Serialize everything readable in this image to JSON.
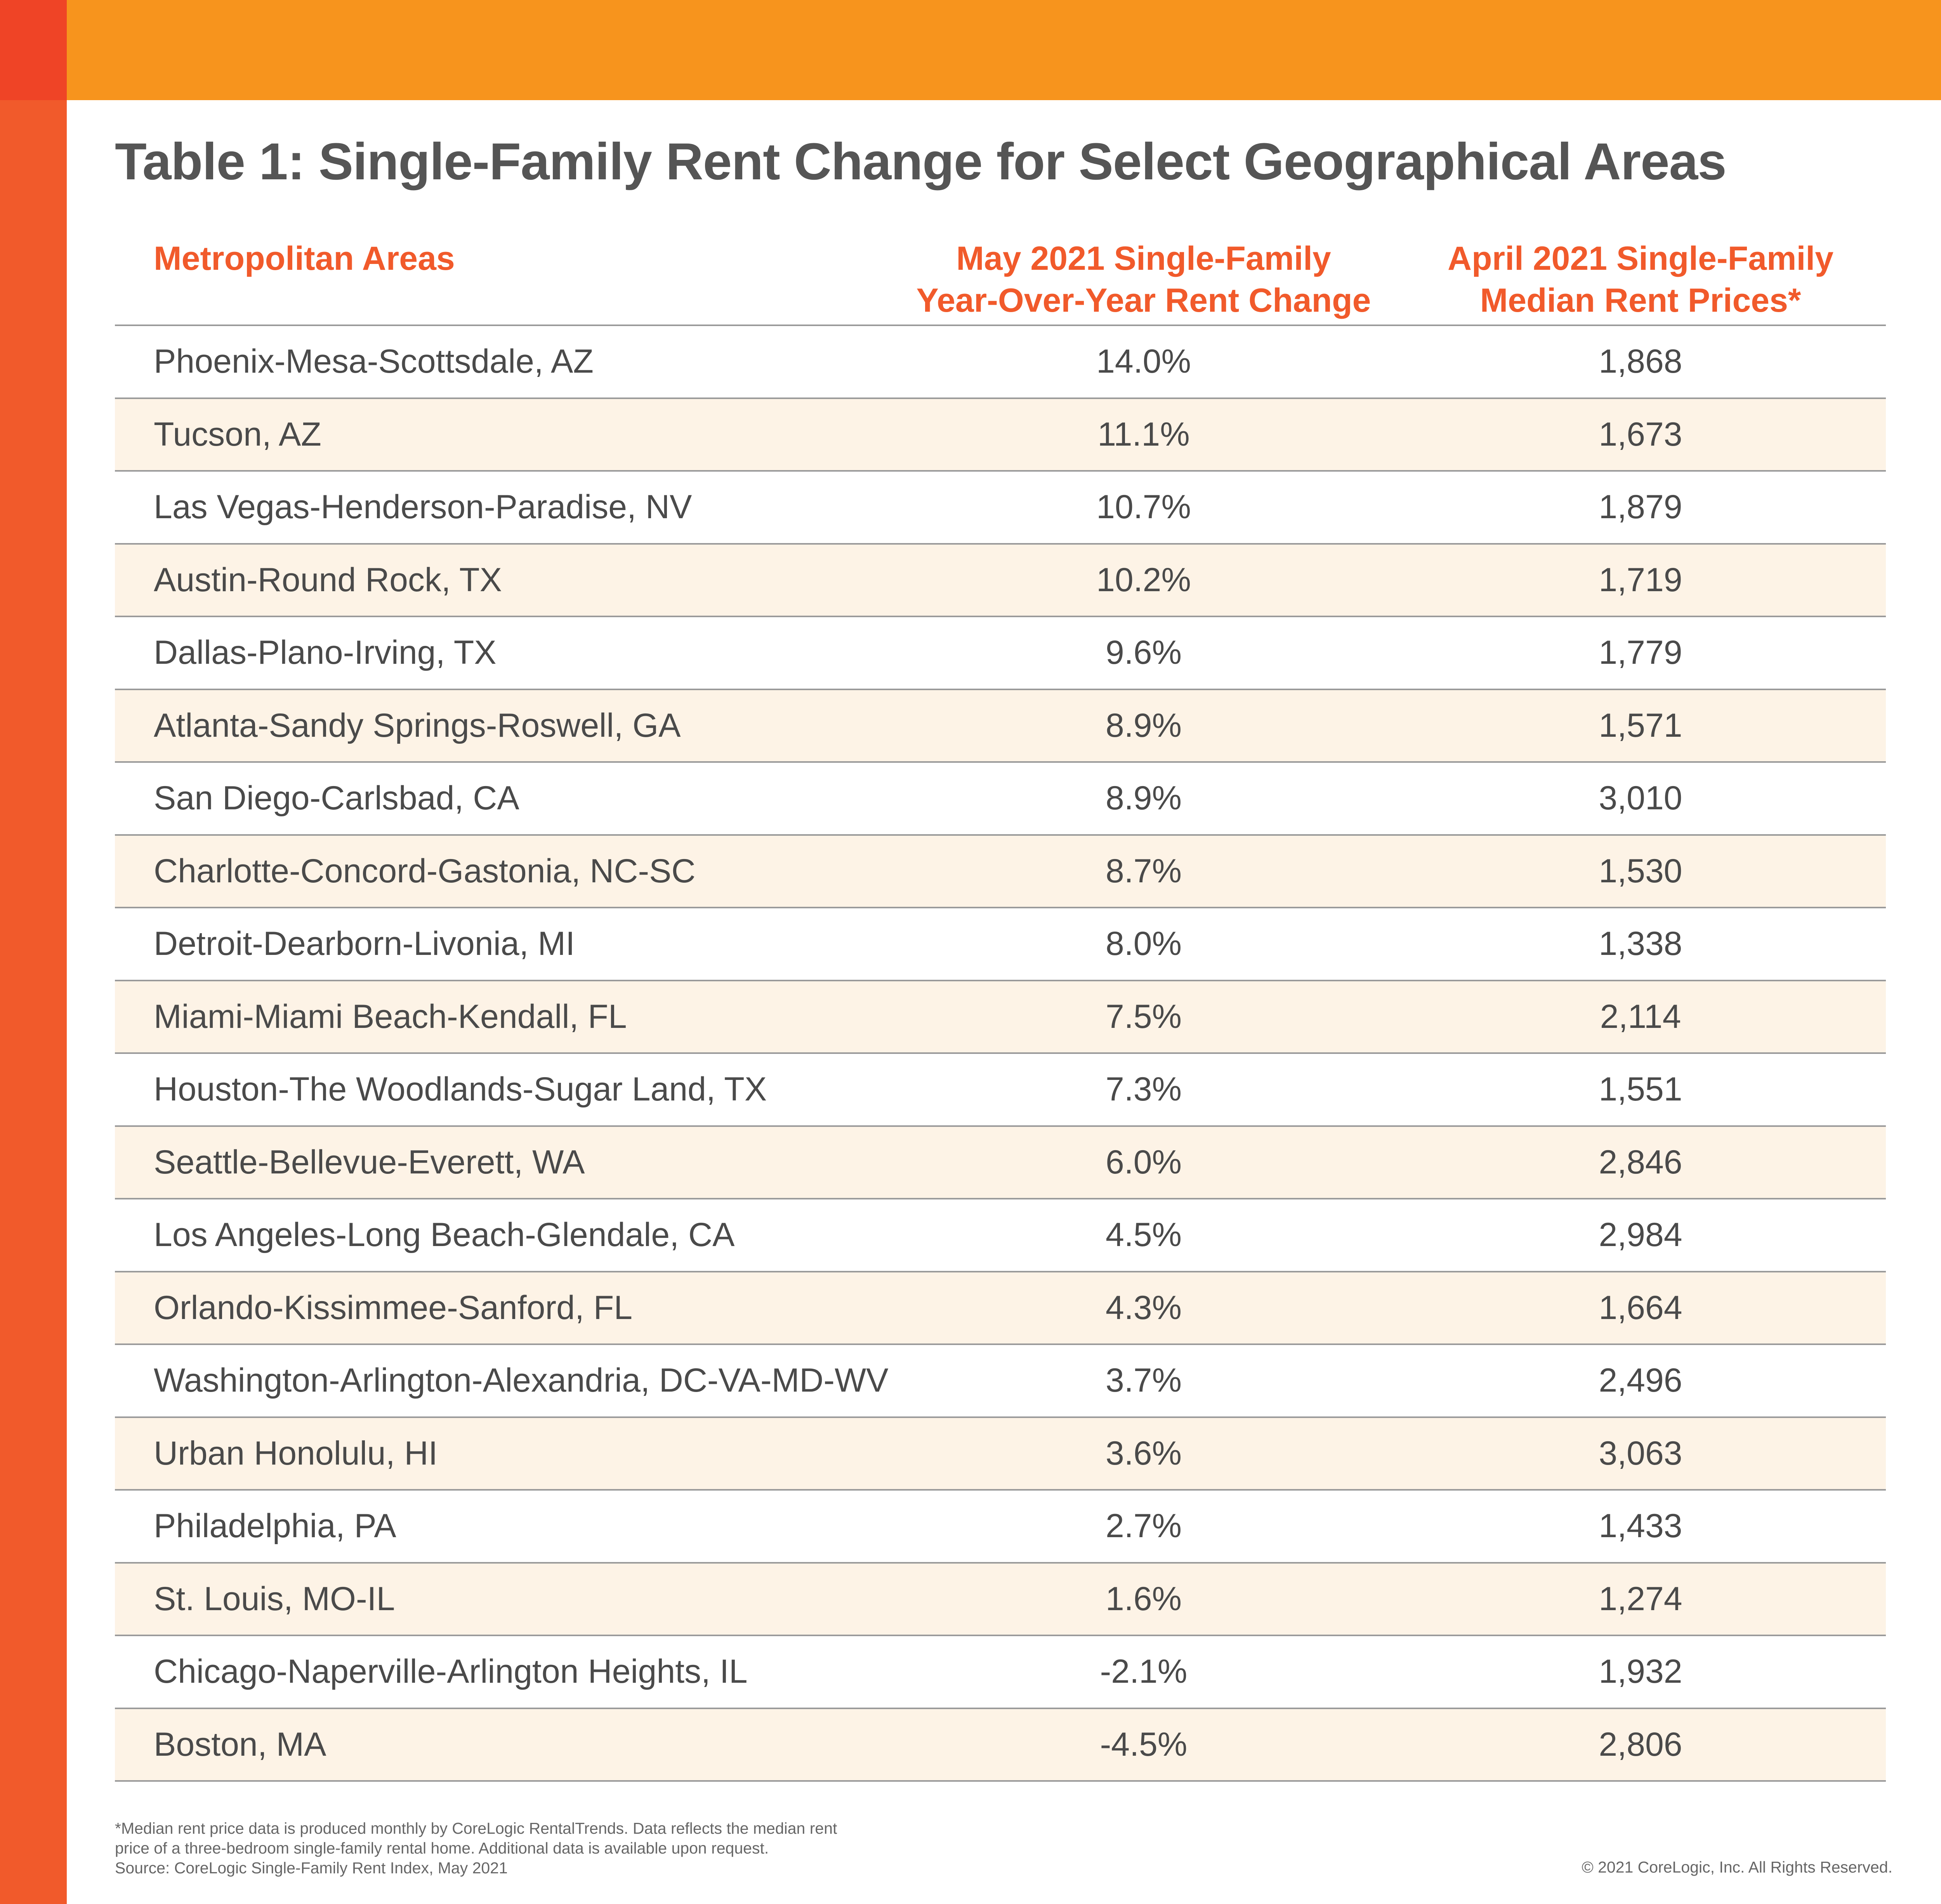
{
  "colors": {
    "top_bar": "#f7941d",
    "corner": "#ef4426",
    "left_bar": "#f15a2b",
    "header_text": "#f15a2b",
    "zebra_row": "#fdf3e6",
    "rule": "#9a9a9a"
  },
  "chart_data": {
    "type": "table",
    "title": "Table 1: Single-Family Rent Change for Select Geographical Areas",
    "columns": [
      "Metropolitan Areas",
      "May 2021 Single-Family\nYear-Over-Year Rent Change",
      "April 2021 Single-Family\nMedian Rent Prices*"
    ],
    "rows": [
      {
        "area": "Phoenix-Mesa-Scottsdale, AZ",
        "change": "14.0%",
        "price": "1,868"
      },
      {
        "area": "Tucson, AZ",
        "change": "11.1%",
        "price": "1,673"
      },
      {
        "area": "Las Vegas-Henderson-Paradise, NV",
        "change": "10.7%",
        "price": "1,879"
      },
      {
        "area": "Austin-Round Rock, TX",
        "change": "10.2%",
        "price": "1,719"
      },
      {
        "area": "Dallas-Plano-Irving, TX",
        "change": "9.6%",
        "price": "1,779"
      },
      {
        "area": "Atlanta-Sandy Springs-Roswell, GA",
        "change": "8.9%",
        "price": "1,571"
      },
      {
        "area": "San Diego-Carlsbad, CA",
        "change": "8.9%",
        "price": "3,010"
      },
      {
        "area": "Charlotte-Concord-Gastonia, NC-SC",
        "change": "8.7%",
        "price": "1,530"
      },
      {
        "area": "Detroit-Dearborn-Livonia, MI",
        "change": "8.0%",
        "price": "1,338"
      },
      {
        "area": "Miami-Miami Beach-Kendall, FL",
        "change": "7.5%",
        "price": "2,114"
      },
      {
        "area": "Houston-The Woodlands-Sugar Land, TX",
        "change": "7.3%",
        "price": "1,551"
      },
      {
        "area": "Seattle-Bellevue-Everett, WA",
        "change": "6.0%",
        "price": "2,846"
      },
      {
        "area": "Los Angeles-Long Beach-Glendale, CA",
        "change": "4.5%",
        "price": "2,984"
      },
      {
        "area": "Orlando-Kissimmee-Sanford, FL",
        "change": "4.3%",
        "price": "1,664"
      },
      {
        "area": "Washington-Arlington-Alexandria, DC-VA-MD-WV",
        "change": "3.7%",
        "price": "2,496"
      },
      {
        "area": "Urban Honolulu, HI",
        "change": "3.6%",
        "price": "3,063"
      },
      {
        "area": "Philadelphia, PA",
        "change": "2.7%",
        "price": "1,433"
      },
      {
        "area": "St. Louis, MO-IL",
        "change": "1.6%",
        "price": "1,274"
      },
      {
        "area": "Chicago-Naperville-Arlington Heights, IL",
        "change": "-2.1%",
        "price": "1,932"
      },
      {
        "area": "Boston, MA",
        "change": "-4.5%",
        "price": "2,806"
      }
    ]
  },
  "footnote": "*Median rent price data is produced monthly by CoreLogic RentalTrends. Data reflects the median rent\nprice of a three-bedroom single-family rental home. Additional data is available upon request.\nSource: CoreLogic Single-Family Rent Index, May 2021",
  "copyright": "© 2021 CoreLogic, Inc. All Rights Reserved."
}
